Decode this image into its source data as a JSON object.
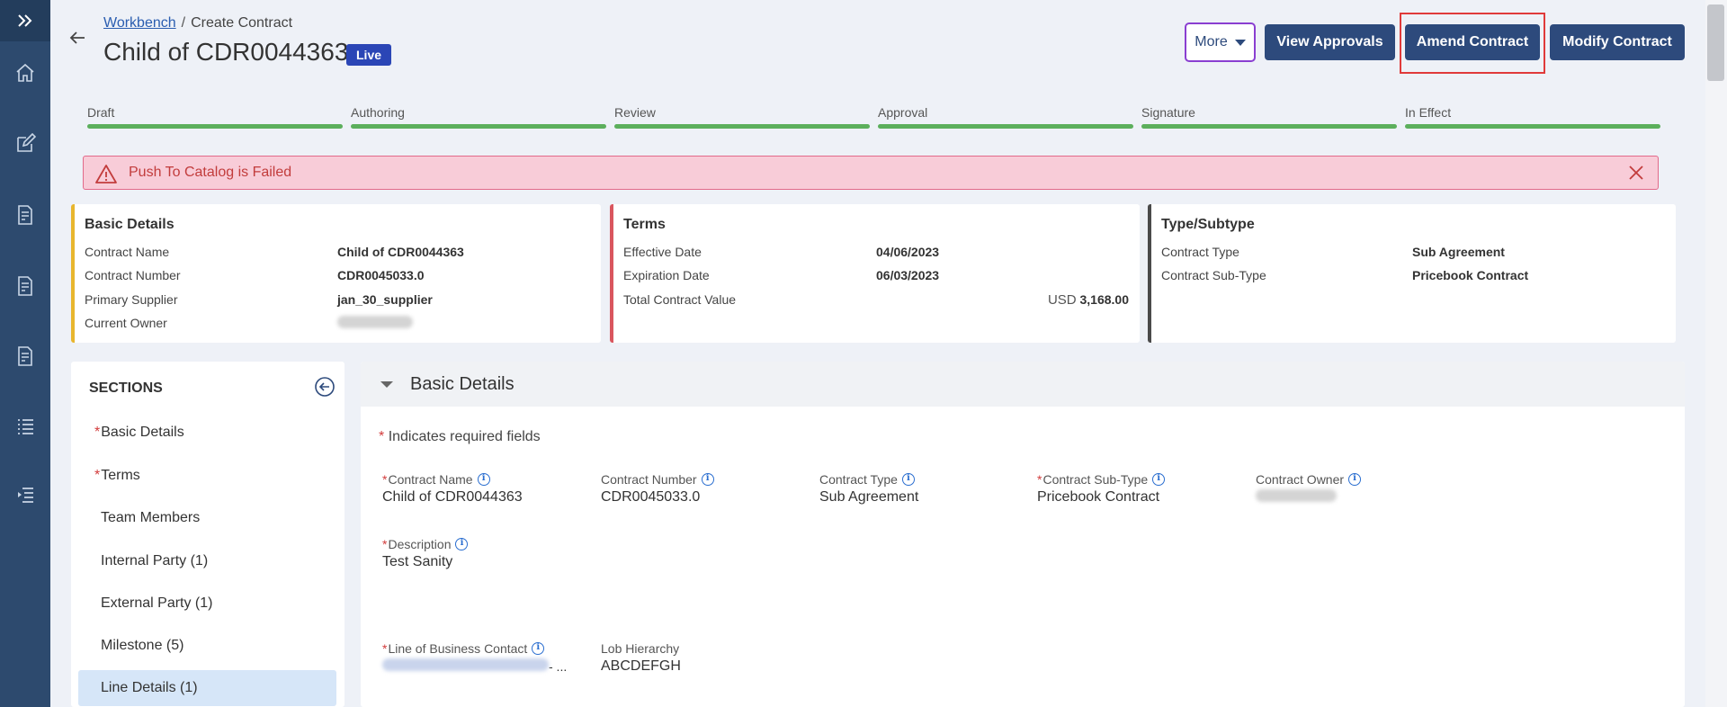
{
  "header": {
    "breadcrumb_link": "Workbench",
    "breadcrumb_sep": "/",
    "breadcrumb_current": "Create Contract",
    "title": "Child of CDR0044363",
    "status": "Live"
  },
  "actions": {
    "more": "More",
    "view_approvals": "View Approvals",
    "amend_contract": "Amend Contract",
    "modify_contract": "Modify Contract"
  },
  "stepper": [
    {
      "label": "Draft"
    },
    {
      "label": "Authoring"
    },
    {
      "label": "Review"
    },
    {
      "label": "Approval"
    },
    {
      "label": "Signature"
    },
    {
      "label": "In Effect"
    }
  ],
  "alert": {
    "text": "Push To Catalog is Failed"
  },
  "cards": {
    "basic": {
      "title": "Basic Details",
      "rows": [
        {
          "label": "Contract Name",
          "value": "Child of CDR0044363"
        },
        {
          "label": "Contract Number",
          "value": "CDR0045033.0"
        },
        {
          "label": "Primary Supplier",
          "value": "jan_30_supplier"
        },
        {
          "label": "Current Owner",
          "value": ""
        }
      ]
    },
    "terms": {
      "title": "Terms",
      "rows": [
        {
          "label": "Effective Date",
          "value": "04/06/2023"
        },
        {
          "label": "Expiration Date",
          "value": "06/03/2023"
        },
        {
          "label": "Total Contract Value",
          "currency": "USD",
          "value": "3,168.00"
        }
      ]
    },
    "type": {
      "title": "Type/Subtype",
      "rows": [
        {
          "label": "Contract Type",
          "value": "Sub Agreement"
        },
        {
          "label": "Contract Sub-Type",
          "value": "Pricebook Contract"
        }
      ]
    }
  },
  "sections": {
    "heading": "SECTIONS",
    "items": [
      {
        "label": "Basic Details",
        "required": "*"
      },
      {
        "label": "Terms",
        "required": "*"
      },
      {
        "label": "Team Members",
        "required": ""
      },
      {
        "label": "Internal Party (1)",
        "required": ""
      },
      {
        "label": "External Party (1)",
        "required": ""
      },
      {
        "label": "Milestone (5)",
        "required": ""
      },
      {
        "label": "Line Details (1)",
        "required": ""
      }
    ]
  },
  "form": {
    "title": "Basic Details",
    "required_note": "Indicates required fields",
    "required_mark": "*",
    "fields": [
      {
        "label": "Contract Name",
        "value": "Child of CDR0044363"
      },
      {
        "label": "Contract Number",
        "value": "CDR0045033.0"
      },
      {
        "label": "Contract Type",
        "value": "Sub Agreement"
      },
      {
        "label": "Contract Sub-Type",
        "value": "Pricebook Contract"
      },
      {
        "label": "Contract Owner",
        "value": ""
      },
      {
        "label": "Description",
        "value": "Test Sanity"
      },
      {
        "label": "Line of Business Contact",
        "value": "- ..."
      },
      {
        "label": "Lob Hierarchy",
        "value": "ABCDEFGH"
      }
    ]
  }
}
